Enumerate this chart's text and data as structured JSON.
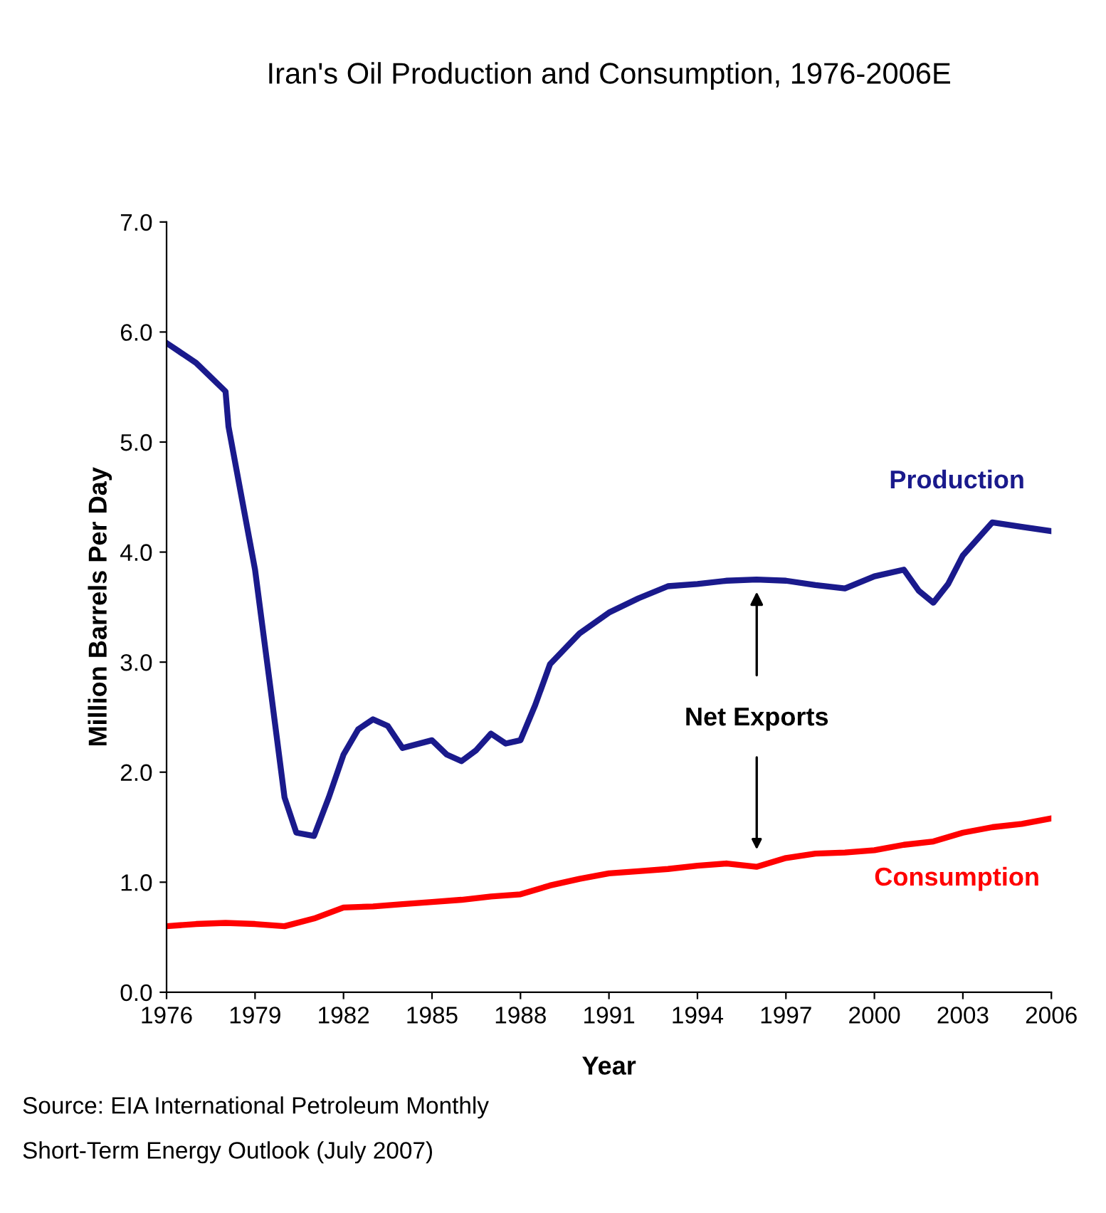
{
  "chart_data": {
    "type": "line",
    "title": "Iran's Oil Production and Consumption, 1976-2006E",
    "xlabel": "Year",
    "ylabel": "Million Barrels Per Day",
    "series": [
      {
        "name": "Production",
        "color": "#1a1a8c",
        "x": [
          1976,
          1977,
          1978,
          1978.1,
          1979,
          1979.5,
          1980,
          1980.4,
          1981,
          1981.5,
          1982,
          1982.5,
          1983,
          1983.5,
          1984,
          1985,
          1985.5,
          1986,
          1986.5,
          1987,
          1987.5,
          1988,
          1988.5,
          1989,
          1990,
          1991,
          1992,
          1993,
          1994,
          1995,
          1996,
          1997,
          1998,
          1999,
          2000,
          2001,
          2001.5,
          2002,
          2002.5,
          2003,
          2004,
          2005,
          2006
        ],
        "values": [
          5.9,
          5.72,
          5.46,
          5.14,
          3.84,
          2.81,
          1.77,
          1.45,
          1.42,
          1.77,
          2.16,
          2.39,
          2.48,
          2.42,
          2.22,
          2.29,
          2.16,
          2.1,
          2.2,
          2.35,
          2.26,
          2.29,
          2.61,
          2.98,
          3.26,
          3.45,
          3.58,
          3.69,
          3.71,
          3.74,
          3.75,
          3.74,
          3.7,
          3.67,
          3.78,
          3.84,
          3.65,
          3.54,
          3.71,
          3.97,
          4.27,
          4.23,
          4.19
        ]
      },
      {
        "name": "Consumption",
        "color": "#ff0000",
        "x": [
          1976,
          1977,
          1978,
          1979,
          1980,
          1981,
          1982,
          1983,
          1984,
          1985,
          1986,
          1987,
          1988,
          1989,
          1990,
          1991,
          1992,
          1993,
          1994,
          1995,
          1996,
          1997,
          1998,
          1999,
          2000,
          2001,
          2002,
          2003,
          2004,
          2005,
          2006
        ],
        "values": [
          0.6,
          0.62,
          0.63,
          0.62,
          0.6,
          0.67,
          0.77,
          0.78,
          0.8,
          0.82,
          0.84,
          0.87,
          0.89,
          0.97,
          1.03,
          1.08,
          1.1,
          1.12,
          1.15,
          1.17,
          1.14,
          1.22,
          1.26,
          1.27,
          1.29,
          1.34,
          1.37,
          1.45,
          1.5,
          1.53,
          1.58
        ]
      }
    ],
    "xlim": [
      1976,
      2006
    ],
    "xticks": [
      1976,
      1979,
      1982,
      1985,
      1988,
      1991,
      1994,
      1997,
      2000,
      2003,
      2006
    ],
    "ylim": [
      0,
      7
    ],
    "yticks": [
      {
        "value": 0,
        "label": "0.0"
      },
      {
        "value": 1,
        "label": "1.0"
      },
      {
        "value": 2,
        "label": "2.0"
      },
      {
        "value": 3,
        "label": "3.0"
      },
      {
        "value": 4,
        "label": "4.0"
      },
      {
        "value": 5,
        "label": "5.0"
      },
      {
        "value": 6,
        "label": "6.0"
      },
      {
        "value": 7,
        "label": "7.0"
      }
    ],
    "grid": false,
    "legend": false,
    "marker": "none",
    "line_style": "solid",
    "annotations": [
      "Net Exports",
      "Source: EIA International Petroleum Monthly",
      "Short-Term Energy Outlook (July 2007)"
    ]
  }
}
